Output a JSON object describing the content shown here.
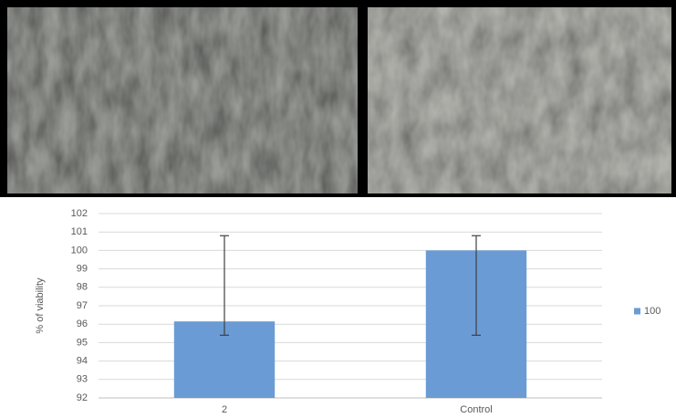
{
  "chart_data": {
    "type": "bar",
    "y_label": "% of viability",
    "categories": [
      "2",
      "Control"
    ],
    "series": [
      {
        "name": "100",
        "color": "#6a9bd5",
        "values": [
          96.15,
          100
        ],
        "error_plus": [
          4.65,
          0.8
        ],
        "error_minus": [
          0.75,
          4.6
        ]
      }
    ],
    "ylim": [
      92,
      102
    ],
    "yticks": [
      92,
      93,
      94,
      95,
      96,
      97,
      98,
      99,
      100,
      101,
      102
    ],
    "grid": true,
    "legend": "right"
  }
}
